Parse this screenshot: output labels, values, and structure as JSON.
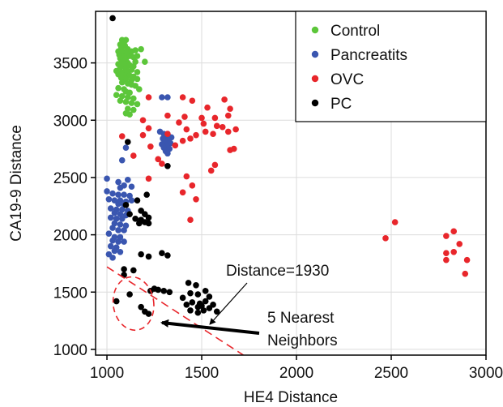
{
  "chart_data": {
    "type": "scatter",
    "xlabel": "HE4 Distance",
    "ylabel": "CA19-9 Distance",
    "xlim": [
      940,
      3000
    ],
    "ylim": [
      950,
      3950
    ],
    "xticks": [
      1000,
      1500,
      2000,
      2500,
      3000
    ],
    "yticks": [
      1000,
      1500,
      2000,
      2500,
      3000,
      3500
    ],
    "grid": true,
    "legend_position": "top-right",
    "series": [
      {
        "name": "Control",
        "color": "#5cc63a",
        "points": [
          [
            1080,
            3700
          ],
          [
            1100,
            3700
          ],
          [
            1090,
            3680
          ],
          [
            1070,
            3660
          ],
          [
            1095,
            3650
          ],
          [
            1075,
            3630
          ],
          [
            1110,
            3620
          ],
          [
            1060,
            3600
          ],
          [
            1085,
            3600
          ],
          [
            1105,
            3590
          ],
          [
            1130,
            3600
          ],
          [
            1150,
            3610
          ],
          [
            1180,
            3620
          ],
          [
            1065,
            3570
          ],
          [
            1090,
            3560
          ],
          [
            1120,
            3560
          ],
          [
            1140,
            3550
          ],
          [
            1160,
            3560
          ],
          [
            1070,
            3540
          ],
          [
            1100,
            3530
          ],
          [
            1080,
            3510
          ],
          [
            1110,
            3500
          ],
          [
            1150,
            3510
          ],
          [
            1200,
            3510
          ],
          [
            1060,
            3490
          ],
          [
            1090,
            3480
          ],
          [
            1120,
            3480
          ],
          [
            1140,
            3470
          ],
          [
            1070,
            3460
          ],
          [
            1100,
            3450
          ],
          [
            1130,
            3440
          ],
          [
            1050,
            3430
          ],
          [
            1080,
            3420
          ],
          [
            1110,
            3420
          ],
          [
            1160,
            3420
          ],
          [
            1060,
            3400
          ],
          [
            1090,
            3390
          ],
          [
            1120,
            3390
          ],
          [
            1140,
            3380
          ],
          [
            1075,
            3370
          ],
          [
            1100,
            3360
          ],
          [
            1130,
            3350
          ],
          [
            1160,
            3360
          ],
          [
            1080,
            3330
          ],
          [
            1110,
            3320
          ],
          [
            1130,
            3310
          ],
          [
            1150,
            3300
          ],
          [
            1060,
            3280
          ],
          [
            1090,
            3270
          ],
          [
            1170,
            3270
          ],
          [
            1100,
            3250
          ],
          [
            1120,
            3240
          ],
          [
            1050,
            3220
          ],
          [
            1080,
            3210
          ],
          [
            1110,
            3200
          ],
          [
            1140,
            3190
          ],
          [
            1070,
            3170
          ],
          [
            1100,
            3160
          ],
          [
            1130,
            3150
          ],
          [
            1160,
            3140
          ],
          [
            1110,
            3100
          ],
          [
            1140,
            3090
          ],
          [
            1100,
            3060
          ],
          [
            1120,
            3050
          ]
        ]
      },
      {
        "name": "Pancreatits",
        "color": "#3a56b0",
        "points": [
          [
            1290,
            3200
          ],
          [
            1320,
            3200
          ],
          [
            1280,
            2900
          ],
          [
            1300,
            2880
          ],
          [
            1320,
            2880
          ],
          [
            1310,
            2860
          ],
          [
            1340,
            2850
          ],
          [
            1295,
            2840
          ],
          [
            1325,
            2830
          ],
          [
            1305,
            2810
          ],
          [
            1335,
            2800
          ],
          [
            1290,
            2790
          ],
          [
            1315,
            2780
          ],
          [
            1300,
            2760
          ],
          [
            1330,
            2750
          ],
          [
            1310,
            2730
          ],
          [
            1320,
            2710
          ],
          [
            1100,
            2760
          ],
          [
            1080,
            2650
          ],
          [
            1000,
            2490
          ],
          [
            1060,
            2460
          ],
          [
            1110,
            2480
          ],
          [
            1090,
            2430
          ],
          [
            1070,
            2410
          ],
          [
            1130,
            2420
          ],
          [
            1000,
            2380
          ],
          [
            1030,
            2360
          ],
          [
            1060,
            2350
          ],
          [
            1090,
            2350
          ],
          [
            1120,
            2340
          ],
          [
            1010,
            2310
          ],
          [
            1040,
            2300
          ],
          [
            1070,
            2300
          ],
          [
            1100,
            2290
          ],
          [
            1130,
            2300
          ],
          [
            1060,
            2270
          ],
          [
            1090,
            2260
          ],
          [
            1020,
            2230
          ],
          [
            1050,
            2220
          ],
          [
            1080,
            2220
          ],
          [
            1110,
            2210
          ],
          [
            1040,
            2190
          ],
          [
            1070,
            2180
          ],
          [
            1100,
            2170
          ],
          [
            1020,
            2150
          ],
          [
            1050,
            2140
          ],
          [
            1080,
            2140
          ],
          [
            1040,
            2100
          ],
          [
            1070,
            2090
          ],
          [
            1100,
            2080
          ],
          [
            1030,
            2060
          ],
          [
            1060,
            2040
          ],
          [
            1090,
            2040
          ],
          [
            1010,
            2010
          ],
          [
            1040,
            1980
          ],
          [
            1070,
            1980
          ],
          [
            1030,
            1950
          ],
          [
            1060,
            1940
          ],
          [
            1090,
            1940
          ],
          [
            1020,
            1900
          ],
          [
            1050,
            1890
          ],
          [
            1040,
            1860
          ],
          [
            1070,
            1850
          ],
          [
            1010,
            1830
          ],
          [
            1030,
            1800
          ]
        ]
      },
      {
        "name": "OVC",
        "color": "#e8262b",
        "points": [
          [
            1220,
            3200
          ],
          [
            1400,
            3200
          ],
          [
            1450,
            3170
          ],
          [
            1620,
            3180
          ],
          [
            1530,
            3110
          ],
          [
            1650,
            3100
          ],
          [
            1320,
            3040
          ],
          [
            1410,
            3030
          ],
          [
            1500,
            3020
          ],
          [
            1570,
            3020
          ],
          [
            1640,
            3040
          ],
          [
            1190,
            3000
          ],
          [
            1380,
            2980
          ],
          [
            1510,
            2970
          ],
          [
            1580,
            2950
          ],
          [
            1610,
            2940
          ],
          [
            1680,
            2920
          ],
          [
            1220,
            2930
          ],
          [
            1420,
            2920
          ],
          [
            1520,
            2900
          ],
          [
            1640,
            2900
          ],
          [
            1190,
            2870
          ],
          [
            1320,
            2880
          ],
          [
            1470,
            2870
          ],
          [
            1560,
            2880
          ],
          [
            1080,
            2860
          ],
          [
            1440,
            2840
          ],
          [
            1400,
            2820
          ],
          [
            1230,
            2770
          ],
          [
            1360,
            2780
          ],
          [
            1670,
            2750
          ],
          [
            1650,
            2740
          ],
          [
            1140,
            2690
          ],
          [
            1270,
            2660
          ],
          [
            1290,
            2620
          ],
          [
            1570,
            2610
          ],
          [
            1550,
            2560
          ],
          [
            1420,
            2510
          ],
          [
            1220,
            2490
          ],
          [
            1450,
            2430
          ],
          [
            1400,
            2370
          ],
          [
            1470,
            2310
          ],
          [
            1440,
            2130
          ],
          [
            2520,
            2110
          ],
          [
            2470,
            1970
          ],
          [
            2790,
            1990
          ],
          [
            2830,
            2030
          ],
          [
            2860,
            1920
          ],
          [
            2790,
            1840
          ],
          [
            2830,
            1850
          ],
          [
            2790,
            1780
          ],
          [
            2900,
            1780
          ],
          [
            2890,
            1660
          ]
        ]
      },
      {
        "name": "PC",
        "color": "#000000",
        "points": [
          [
            1030,
            3890
          ],
          [
            1110,
            2810
          ],
          [
            1320,
            2600
          ],
          [
            1210,
            2350
          ],
          [
            1160,
            2300
          ],
          [
            1100,
            2260
          ],
          [
            1180,
            2210
          ],
          [
            1200,
            2180
          ],
          [
            1120,
            2180
          ],
          [
            1150,
            2140
          ],
          [
            1180,
            2130
          ],
          [
            1220,
            2150
          ],
          [
            1200,
            2110
          ],
          [
            1170,
            2100
          ],
          [
            1220,
            2100
          ],
          [
            1290,
            1840
          ],
          [
            1320,
            1820
          ],
          [
            1180,
            1830
          ],
          [
            1220,
            1810
          ],
          [
            1090,
            1700
          ],
          [
            1140,
            1690
          ],
          [
            1090,
            1650
          ],
          [
            1430,
            1580
          ],
          [
            1470,
            1560
          ],
          [
            1250,
            1530
          ],
          [
            1230,
            1510
          ],
          [
            1270,
            1520
          ],
          [
            1300,
            1510
          ],
          [
            1520,
            1510
          ],
          [
            1330,
            1500
          ],
          [
            1440,
            1490
          ],
          [
            1480,
            1480
          ],
          [
            1400,
            1450
          ],
          [
            1540,
            1460
          ],
          [
            1120,
            1480
          ],
          [
            1520,
            1420
          ],
          [
            1450,
            1410
          ],
          [
            1490,
            1400
          ],
          [
            1560,
            1390
          ],
          [
            1050,
            1420
          ],
          [
            1420,
            1390
          ],
          [
            1500,
            1380
          ],
          [
            1480,
            1370
          ],
          [
            1540,
            1360
          ],
          [
            1180,
            1370
          ],
          [
            1440,
            1340
          ],
          [
            1510,
            1340
          ],
          [
            1580,
            1330
          ],
          [
            1200,
            1330
          ],
          [
            1480,
            1320
          ],
          [
            1220,
            1310
          ]
        ]
      }
    ],
    "annotations": {
      "distance_label": "Distance=1930",
      "neighbors_label_line1": "5 Nearest",
      "neighbors_label_line2": "Neighbors"
    }
  }
}
